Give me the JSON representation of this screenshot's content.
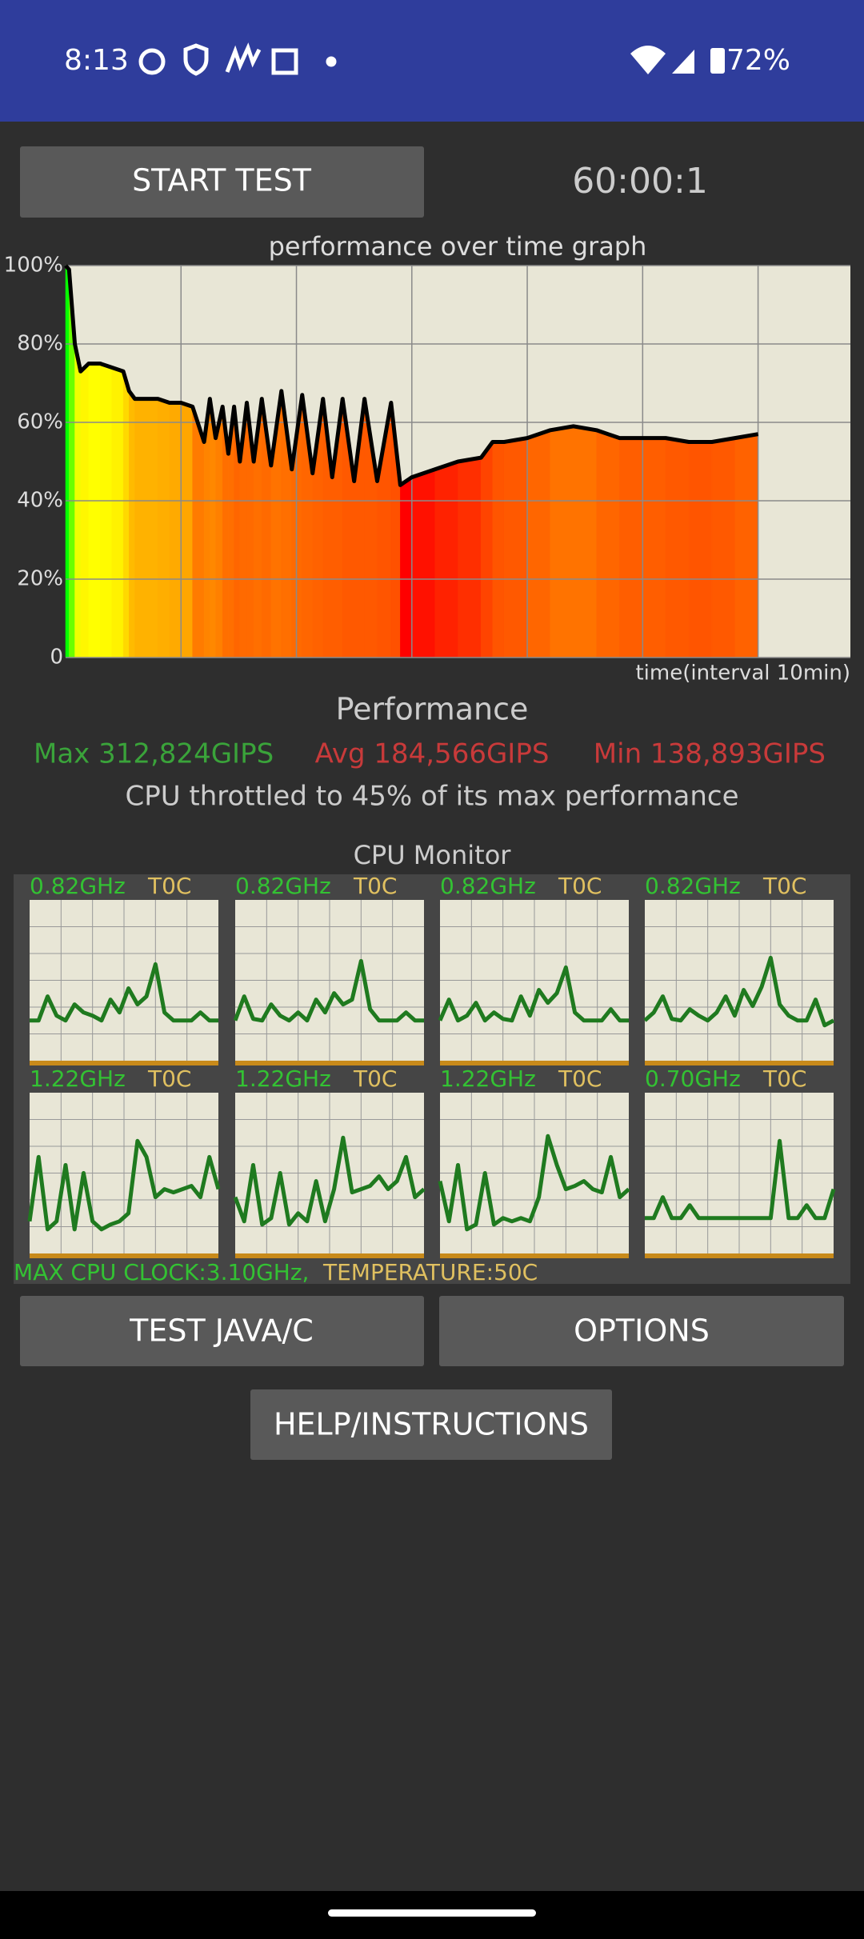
{
  "status_bar": {
    "time": "8:13",
    "battery": "72%"
  },
  "start_button": "START TEST",
  "timer": "60:00:1",
  "chart_data": {
    "type": "line",
    "title": "performance over time graph",
    "x_label": "time(interval 10min)",
    "x": [
      0,
      0.3,
      0.8,
      1.3,
      2,
      3,
      4,
      5,
      5.5,
      6,
      7,
      8,
      9,
      10,
      11,
      12,
      12.5,
      13,
      13.6,
      14.1,
      14.6,
      15.1,
      15.7,
      16.3,
      17.0,
      17.8,
      18.7,
      19.6,
      20.5,
      21.4,
      22.3,
      23.1,
      24.0,
      25.0,
      25.9,
      27.0,
      28.2,
      29.0,
      30,
      32,
      34,
      36,
      37,
      38,
      40,
      42,
      44,
      46,
      48,
      50,
      52,
      54,
      56,
      58,
      60
    ],
    "values": [
      100,
      99,
      80,
      73,
      75,
      75,
      74,
      73,
      68,
      66,
      66,
      66,
      65,
      65,
      64,
      55,
      66,
      56,
      64,
      52,
      64,
      50,
      65,
      50,
      66,
      49,
      68,
      48,
      67,
      47,
      66,
      46,
      66,
      45,
      66,
      45,
      65,
      44,
      46,
      48,
      50,
      51,
      55,
      55,
      56,
      58,
      59,
      58,
      56,
      56,
      56,
      55,
      55,
      56,
      57
    ],
    "color": "#000000",
    "xlim": [
      0,
      68
    ],
    "xticks": [
      10,
      20,
      30,
      40,
      50,
      60
    ],
    "ylim": [
      0,
      100
    ],
    "yticks": [
      0,
      {
        "value": 20,
        "label": "20%"
      },
      {
        "value": 40,
        "label": "40%"
      },
      {
        "value": 60,
        "label": "60%"
      },
      {
        "value": 80,
        "label": "80%"
      },
      {
        "value": 100,
        "label": "100%"
      }
    ],
    "grid": true
  },
  "performance": {
    "title": "Performance",
    "max": "Max 312,824GIPS",
    "avg": "Avg 184,566GIPS",
    "min": "Min 138,893GIPS",
    "throttle": "CPU throttled to 45% of its max performance"
  },
  "cpu_monitor": {
    "title": "CPU Monitor",
    "color": "#1f7a1f",
    "ylim": [
      0,
      100
    ],
    "cores": [
      {
        "frequency": "0.82GHz",
        "temperature": "T0C",
        "values": [
          25,
          25,
          40,
          28,
          25,
          35,
          30,
          28,
          25,
          38,
          30,
          45,
          35,
          40,
          60,
          30,
          25,
          25,
          25,
          30,
          25,
          25
        ]
      },
      {
        "frequency": "0.82GHz",
        "temperature": "T0C",
        "values": [
          25,
          40,
          26,
          25,
          35,
          28,
          25,
          30,
          25,
          38,
          30,
          42,
          35,
          38,
          62,
          32,
          25,
          25,
          25,
          30,
          25,
          25
        ]
      },
      {
        "frequency": "0.82GHz",
        "temperature": "T0C",
        "values": [
          25,
          38,
          25,
          28,
          36,
          25,
          30,
          26,
          25,
          40,
          28,
          44,
          36,
          42,
          58,
          30,
          25,
          25,
          25,
          32,
          25,
          25
        ]
      },
      {
        "frequency": "0.82GHz",
        "temperature": "T0C",
        "values": [
          25,
          30,
          40,
          26,
          25,
          32,
          28,
          25,
          30,
          40,
          28,
          44,
          34,
          46,
          64,
          35,
          28,
          25,
          25,
          38,
          22,
          25
        ]
      },
      {
        "frequency": "1.22GHz",
        "temperature": "T0C",
        "values": [
          20,
          60,
          15,
          20,
          55,
          15,
          50,
          20,
          15,
          18,
          20,
          25,
          70,
          60,
          35,
          40,
          38,
          40,
          42,
          35,
          60,
          40
        ]
      },
      {
        "frequency": "1.22GHz",
        "temperature": "T0C",
        "values": [
          35,
          20,
          55,
          18,
          22,
          50,
          18,
          25,
          20,
          45,
          20,
          40,
          72,
          38,
          40,
          42,
          48,
          40,
          45,
          60,
          35,
          40
        ]
      },
      {
        "frequency": "1.22GHz",
        "temperature": "T0C",
        "values": [
          45,
          20,
          55,
          15,
          18,
          50,
          18,
          22,
          20,
          22,
          20,
          35,
          73,
          55,
          40,
          42,
          45,
          40,
          38,
          60,
          35,
          40
        ]
      },
      {
        "frequency": "0.70GHz",
        "temperature": "T0C",
        "values": [
          22,
          22,
          35,
          22,
          22,
          30,
          22,
          22,
          22,
          22,
          22,
          22,
          22,
          22,
          22,
          70,
          22,
          22,
          30,
          22,
          22,
          40
        ]
      }
    ],
    "max_clock": "MAX CPU CLOCK:3.10GHz,",
    "temperature": "TEMPERATURE:50C"
  },
  "buttons": {
    "test": "TEST JAVA/C",
    "options": "OPTIONS",
    "help": "HELP/INSTRUCTIONS"
  }
}
